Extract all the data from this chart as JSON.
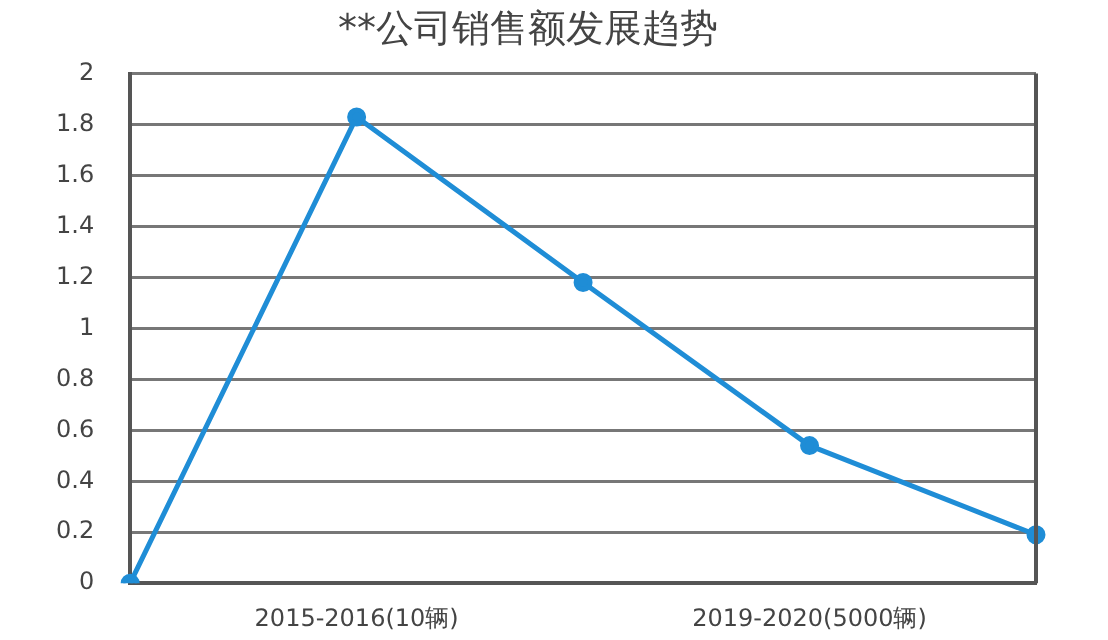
{
  "chart_data": {
    "type": "line",
    "title": "**公司销售额发展趋势",
    "categories": [
      null,
      "2015-2016(10辆)",
      null,
      "2019-2020(5000辆)",
      null
    ],
    "series": [
      {
        "color": "#1f8dd6",
        "values": [
          0,
          1.83,
          1.18,
          0.54,
          0.19
        ]
      }
    ],
    "ylim": [
      0,
      2
    ],
    "yticks": [
      0,
      0.2,
      0.4,
      0.6,
      0.8,
      1,
      1.2,
      1.4,
      1.6,
      1.8,
      2
    ],
    "grid": "y",
    "legend": false,
    "marker": "circle",
    "line_style": "solid"
  }
}
